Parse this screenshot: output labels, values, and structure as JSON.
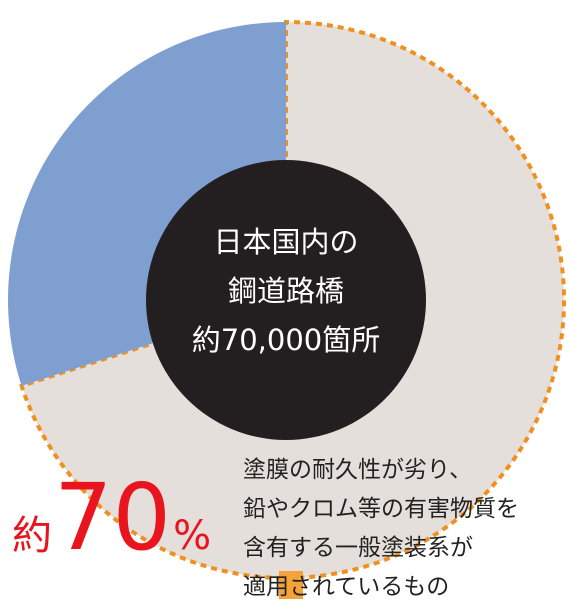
{
  "chart_data": {
    "type": "pie",
    "center_label": "日本国内の\n鋼道路橋\n約70,000箇所",
    "categories": [
      "塗膜の耐久性が劣り、\n鉛やクロム等の有害物質を\n含有する一般塗装系が\n適用されているもの",
      null
    ],
    "values": [
      70,
      30
    ],
    "value_labels": [
      "約70%",
      null
    ],
    "colors": [
      "#e4dfdb",
      "#7f9fd0"
    ],
    "edge_color": "#f0901e"
  }
}
